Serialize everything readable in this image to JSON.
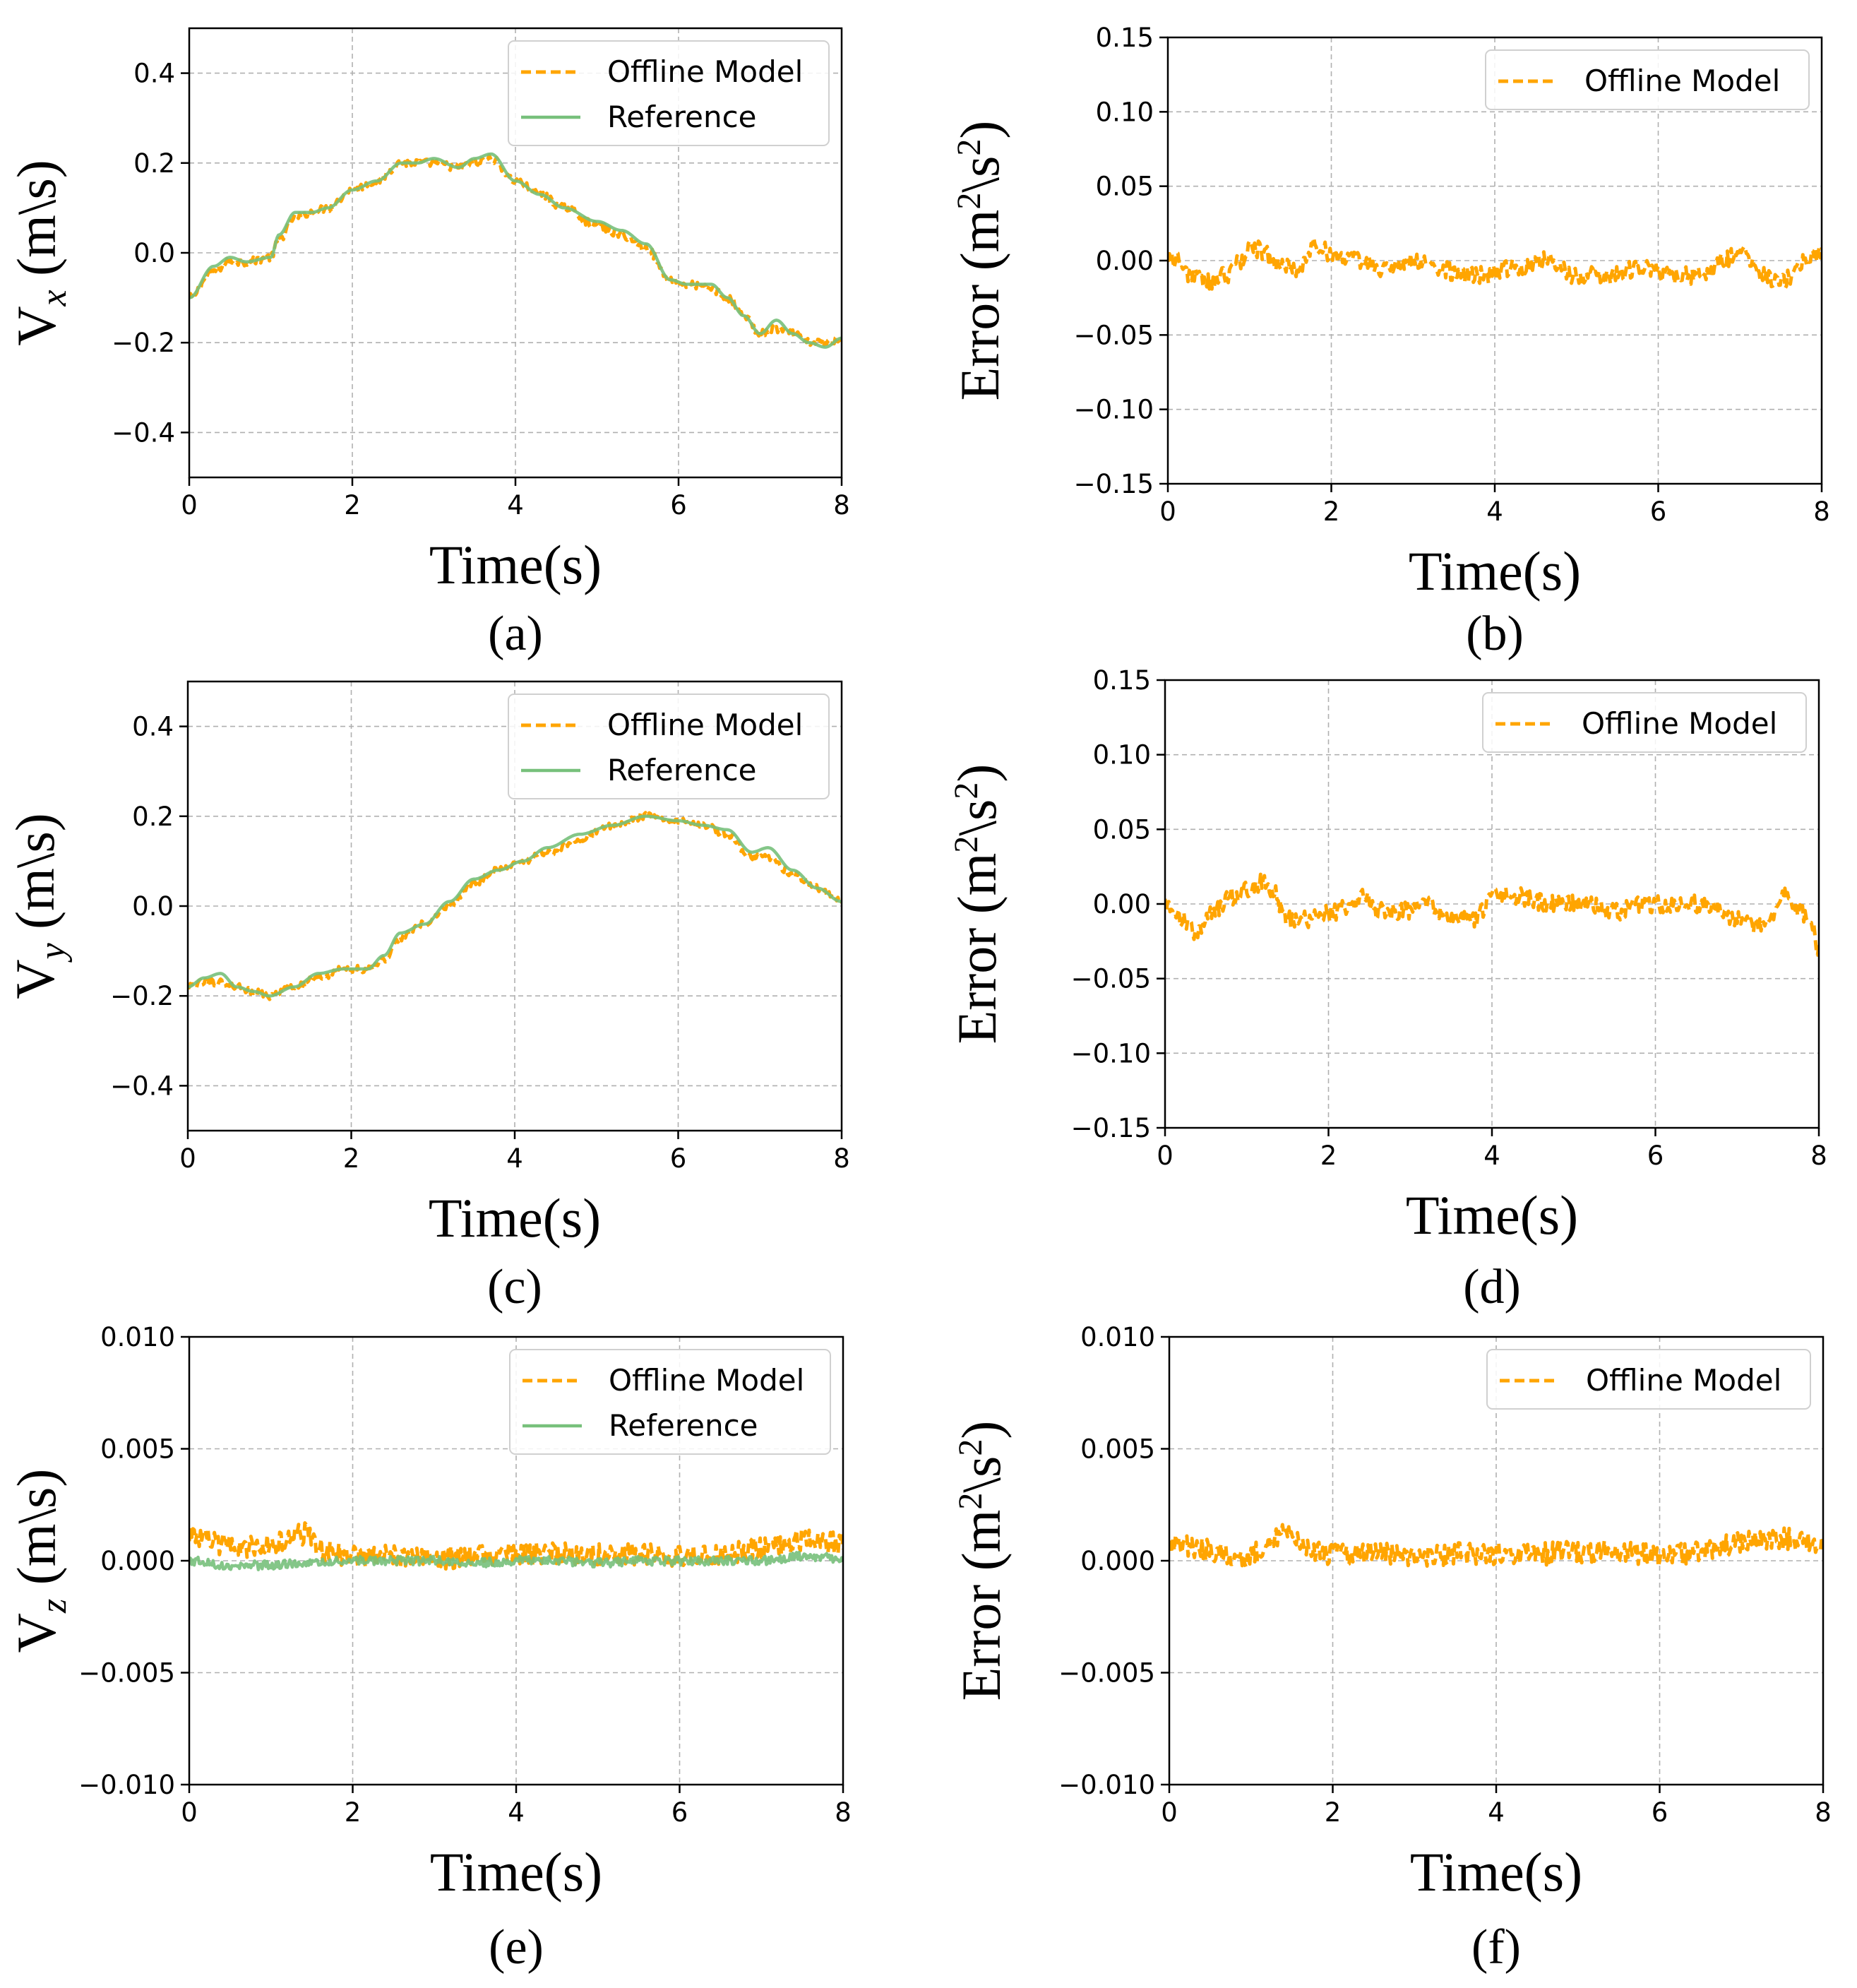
{
  "colors": {
    "offline": "#ffa500",
    "reference": "#77c07b",
    "grid": "#b0b0b0",
    "axis": "#000000"
  },
  "xlabel": "Time(s)",
  "chart_data": [
    {
      "panel": "a",
      "caption": "(a)",
      "type": "line",
      "ylabel_main": "V",
      "ylabel_sub": "x",
      "ylabel_unit": " (m\\s)",
      "xlim": [
        0,
        8
      ],
      "ylim": [
        -0.5,
        0.5
      ],
      "xticks": [
        0,
        2,
        4,
        6,
        8
      ],
      "xtick_labels": [
        "0",
        "2",
        "4",
        "6",
        "8"
      ],
      "yticks": [
        0.4,
        0.2,
        0.0,
        -0.2,
        -0.4
      ],
      "ytick_labels": [
        "0.4",
        "0.2",
        "0.0",
        "−0.2",
        "−0.4"
      ],
      "grid": true,
      "legend_position": "top-right",
      "series": [
        {
          "name": "Offline Model",
          "style": "dashed",
          "color": "#ffa500",
          "noise": 0.009,
          "x": [
            0,
            0.3,
            0.5,
            0.7,
            1.0,
            1.1,
            1.3,
            1.5,
            1.7,
            2.0,
            2.3,
            2.6,
            2.8,
            3.0,
            3.3,
            3.5,
            3.7,
            4.0,
            4.3,
            4.6,
            5.0,
            5.3,
            5.6,
            5.9,
            6.1,
            6.4,
            6.6,
            6.8,
            7.0,
            7.2,
            7.4,
            7.6,
            7.8,
            8.0
          ],
          "y": [
            -0.1,
            -0.04,
            -0.02,
            -0.02,
            -0.01,
            0.03,
            0.08,
            0.09,
            0.1,
            0.14,
            0.16,
            0.2,
            0.2,
            0.2,
            0.19,
            0.2,
            0.21,
            0.16,
            0.13,
            0.1,
            0.06,
            0.04,
            0.01,
            -0.06,
            -0.07,
            -0.08,
            -0.1,
            -0.14,
            -0.18,
            -0.17,
            -0.18,
            -0.2,
            -0.2,
            -0.19
          ]
        },
        {
          "name": "Reference",
          "style": "solid",
          "color": "#77c07b",
          "noise": 0,
          "x": [
            0,
            0.3,
            0.5,
            0.7,
            1.0,
            1.1,
            1.3,
            1.5,
            1.7,
            2.0,
            2.3,
            2.6,
            2.8,
            3.0,
            3.3,
            3.5,
            3.7,
            4.0,
            4.3,
            4.6,
            5.0,
            5.3,
            5.6,
            5.9,
            6.1,
            6.4,
            6.6,
            6.8,
            7.0,
            7.2,
            7.4,
            7.6,
            7.8,
            8.0
          ],
          "y": [
            -0.1,
            -0.03,
            -0.01,
            -0.02,
            -0.01,
            0.04,
            0.09,
            0.09,
            0.1,
            0.14,
            0.16,
            0.2,
            0.2,
            0.21,
            0.19,
            0.21,
            0.22,
            0.16,
            0.13,
            0.1,
            0.07,
            0.05,
            0.02,
            -0.06,
            -0.07,
            -0.07,
            -0.1,
            -0.14,
            -0.18,
            -0.15,
            -0.18,
            -0.2,
            -0.21,
            -0.19
          ]
        }
      ]
    },
    {
      "panel": "b",
      "caption": "(b)",
      "type": "line",
      "ylabel_main": "Error",
      "ylabel_unit": " (m",
      "ylabel_sup": "2",
      "ylabel_unit2": "\\s",
      "ylabel_sup2": "2",
      "ylabel_close": ")",
      "xlim": [
        0,
        8
      ],
      "ylim": [
        -0.15,
        0.15
      ],
      "xticks": [
        0,
        2,
        4,
        6,
        8
      ],
      "xtick_labels": [
        "0",
        "2",
        "4",
        "6",
        "8"
      ],
      "yticks": [
        0.15,
        0.1,
        0.05,
        0.0,
        -0.05,
        -0.1,
        -0.15
      ],
      "ytick_labels": [
        "0.15",
        "0.10",
        "0.05",
        "0.00",
        "−0.05",
        "−0.10",
        "−0.15"
      ],
      "grid": true,
      "legend_position": "top-right",
      "series": [
        {
          "name": "Offline Model",
          "style": "dashed",
          "color": "#ffa500",
          "noise": 0.006,
          "x": [
            0,
            0.1,
            0.3,
            0.5,
            0.7,
            0.9,
            1.0,
            1.2,
            1.4,
            1.6,
            1.8,
            2.0,
            2.3,
            2.6,
            2.8,
            3.0,
            3.3,
            3.6,
            3.9,
            4.2,
            4.6,
            5.0,
            5.4,
            5.8,
            6.2,
            6.6,
            6.8,
            7.0,
            7.3,
            7.5,
            7.8,
            8.0
          ],
          "y": [
            0.005,
            0.0,
            -0.01,
            -0.015,
            -0.01,
            0.0,
            0.01,
            0.005,
            -0.005,
            -0.005,
            0.01,
            0.005,
            0.0,
            -0.005,
            -0.005,
            0.0,
            -0.005,
            -0.01,
            -0.01,
            -0.005,
            0.0,
            -0.01,
            -0.01,
            -0.005,
            -0.01,
            -0.01,
            0.0,
            0.005,
            -0.01,
            -0.015,
            0.0,
            0.005
          ]
        }
      ]
    },
    {
      "panel": "c",
      "caption": "(c)",
      "type": "line",
      "ylabel_main": "V",
      "ylabel_sub": "y",
      "ylabel_unit": " (m\\s)",
      "xlim": [
        0,
        8
      ],
      "ylim": [
        -0.5,
        0.5
      ],
      "xticks": [
        0,
        2,
        4,
        6,
        8
      ],
      "xtick_labels": [
        "0",
        "2",
        "4",
        "6",
        "8"
      ],
      "yticks": [
        0.4,
        0.2,
        0.0,
        -0.2,
        -0.4
      ],
      "ytick_labels": [
        "0.4",
        "0.2",
        "0.0",
        "−0.2",
        "−0.4"
      ],
      "grid": true,
      "legend_position": "top-right",
      "series": [
        {
          "name": "Offline Model",
          "style": "dashed",
          "color": "#ffa500",
          "noise": 0.008,
          "x": [
            0,
            0.2,
            0.4,
            0.6,
            0.8,
            1.0,
            1.3,
            1.6,
            1.9,
            2.2,
            2.4,
            2.6,
            2.9,
            3.2,
            3.5,
            3.8,
            4.1,
            4.4,
            4.8,
            5.2,
            5.6,
            6.0,
            6.3,
            6.6,
            6.9,
            7.1,
            7.4,
            7.7,
            8.0
          ],
          "y": [
            -0.18,
            -0.17,
            -0.17,
            -0.18,
            -0.19,
            -0.2,
            -0.18,
            -0.16,
            -0.14,
            -0.14,
            -0.12,
            -0.07,
            -0.04,
            0.0,
            0.05,
            0.08,
            0.1,
            0.12,
            0.15,
            0.18,
            0.2,
            0.19,
            0.18,
            0.16,
            0.11,
            0.11,
            0.07,
            0.04,
            0.01
          ]
        },
        {
          "name": "Reference",
          "style": "solid",
          "color": "#77c07b",
          "noise": 0,
          "x": [
            0,
            0.2,
            0.4,
            0.6,
            0.8,
            1.0,
            1.3,
            1.6,
            1.9,
            2.2,
            2.4,
            2.6,
            2.9,
            3.2,
            3.5,
            3.8,
            4.1,
            4.4,
            4.8,
            5.2,
            5.6,
            6.0,
            6.3,
            6.6,
            6.9,
            7.1,
            7.4,
            7.7,
            8.0
          ],
          "y": [
            -0.18,
            -0.16,
            -0.15,
            -0.18,
            -0.19,
            -0.2,
            -0.18,
            -0.15,
            -0.14,
            -0.14,
            -0.11,
            -0.06,
            -0.04,
            0.01,
            0.06,
            0.08,
            0.1,
            0.13,
            0.16,
            0.18,
            0.2,
            0.19,
            0.18,
            0.17,
            0.12,
            0.13,
            0.08,
            0.04,
            0.01
          ]
        }
      ]
    },
    {
      "panel": "d",
      "caption": "(d)",
      "type": "line",
      "ylabel_main": "Error",
      "ylabel_unit": " (m",
      "ylabel_sup": "2",
      "ylabel_unit2": "\\s",
      "ylabel_sup2": "2",
      "ylabel_close": ")",
      "xlim": [
        0,
        8
      ],
      "ylim": [
        -0.15,
        0.15
      ],
      "xticks": [
        0,
        2,
        4,
        6,
        8
      ],
      "xtick_labels": [
        "0",
        "2",
        "4",
        "6",
        "8"
      ],
      "yticks": [
        0.15,
        0.1,
        0.05,
        0.0,
        -0.05,
        -0.1,
        -0.15
      ],
      "ytick_labels": [
        "0.15",
        "0.10",
        "0.05",
        "0.00",
        "−0.05",
        "−0.10",
        "−0.15"
      ],
      "grid": true,
      "legend_position": "top-right",
      "series": [
        {
          "name": "Offline Model",
          "style": "dashed",
          "color": "#ffa500",
          "noise": 0.006,
          "x": [
            0,
            0.2,
            0.4,
            0.6,
            0.8,
            1.0,
            1.2,
            1.3,
            1.5,
            1.8,
            2.1,
            2.4,
            2.6,
            2.9,
            3.2,
            3.5,
            3.8,
            4.0,
            4.3,
            4.7,
            5.1,
            5.5,
            5.9,
            6.3,
            6.7,
            7.0,
            7.3,
            7.6,
            7.9,
            8.0
          ],
          "y": [
            0.0,
            -0.01,
            -0.02,
            -0.005,
            0.005,
            0.01,
            0.015,
            0.01,
            -0.01,
            -0.01,
            -0.005,
            0.005,
            -0.005,
            -0.005,
            0.0,
            -0.01,
            -0.01,
            0.005,
            0.005,
            0.0,
            0.0,
            -0.005,
            0.0,
            0.0,
            0.0,
            -0.01,
            -0.015,
            0.005,
            -0.01,
            -0.03
          ]
        }
      ]
    },
    {
      "panel": "e",
      "caption": "(e)",
      "type": "line",
      "ylabel_main": "V",
      "ylabel_sub": "z",
      "ylabel_unit": " (m\\s)",
      "xlim": [
        0,
        8
      ],
      "ylim": [
        -0.01,
        0.01
      ],
      "xticks": [
        0,
        2,
        4,
        6,
        8
      ],
      "xtick_labels": [
        "0",
        "2",
        "4",
        "6",
        "8"
      ],
      "yticks": [
        0.01,
        0.005,
        0.0,
        -0.005,
        -0.01
      ],
      "ytick_labels": [
        "0.010",
        "0.005",
        "0.000",
        "−0.005",
        "−0.010"
      ],
      "grid": true,
      "legend_position": "top-right",
      "series": [
        {
          "name": "Offline Model",
          "style": "dashed",
          "color": "#ffa500",
          "noise": 0.0005,
          "x": [
            0,
            0.3,
            0.6,
            1.0,
            1.4,
            1.7,
            2.0,
            2.5,
            3.0,
            3.5,
            4.0,
            4.5,
            5.0,
            5.5,
            6.0,
            6.5,
            7.0,
            7.5,
            8.0
          ],
          "y": [
            0.0012,
            0.0008,
            0.0006,
            0.0007,
            0.0012,
            0.0004,
            0.0002,
            0.0002,
            0.0001,
            0.0002,
            0.0003,
            0.0003,
            0.0003,
            0.0003,
            0.0002,
            0.0003,
            0.0006,
            0.0009,
            0.0008
          ]
        },
        {
          "name": "Reference",
          "style": "solid",
          "color": "#77c07b",
          "noise": 0.0002,
          "x": [
            0,
            0.5,
            1.0,
            1.5,
            2.0,
            2.5,
            3.0,
            3.5,
            4.0,
            4.5,
            5.0,
            5.5,
            6.0,
            6.5,
            7.0,
            7.5,
            8.0
          ],
          "y": [
            0.0,
            -0.0002,
            -0.0002,
            -0.0001,
            0.0,
            0.0,
            0.0,
            -0.0001,
            0.0,
            0.0,
            -0.0001,
            0.0,
            0.0,
            0.0,
            0.0,
            0.0002,
            0.0001
          ]
        }
      ]
    },
    {
      "panel": "f",
      "caption": "(f)",
      "type": "line",
      "ylabel_main": "Error",
      "ylabel_unit": " (m",
      "ylabel_sup": "2",
      "ylabel_unit2": "\\s",
      "ylabel_sup2": "2",
      "ylabel_close": ")",
      "xlim": [
        0,
        8
      ],
      "ylim": [
        -0.01,
        0.01
      ],
      "xticks": [
        0,
        2,
        4,
        6,
        8
      ],
      "xtick_labels": [
        "0",
        "2",
        "4",
        "6",
        "8"
      ],
      "yticks": [
        0.01,
        0.005,
        0.0,
        -0.005,
        -0.01
      ],
      "ytick_labels": [
        "0.010",
        "0.005",
        "0.000",
        "−0.005",
        "−0.010"
      ],
      "grid": true,
      "legend_position": "top-right",
      "series": [
        {
          "name": "Offline Model",
          "style": "dashed",
          "color": "#ffa500",
          "noise": 0.0005,
          "x": [
            0,
            0.3,
            0.6,
            0.9,
            1.1,
            1.3,
            1.4,
            1.5,
            1.7,
            2.0,
            2.5,
            3.0,
            3.5,
            4.0,
            4.5,
            5.0,
            5.5,
            6.0,
            6.5,
            7.0,
            7.5,
            8.0
          ],
          "y": [
            0.0008,
            0.0006,
            0.0004,
            0.0002,
            0.0004,
            0.001,
            0.0016,
            0.001,
            0.0005,
            0.0003,
            0.0003,
            0.0002,
            0.0003,
            0.0003,
            0.0003,
            0.0004,
            0.0004,
            0.0002,
            0.0004,
            0.0008,
            0.001,
            0.0007
          ]
        }
      ]
    }
  ]
}
